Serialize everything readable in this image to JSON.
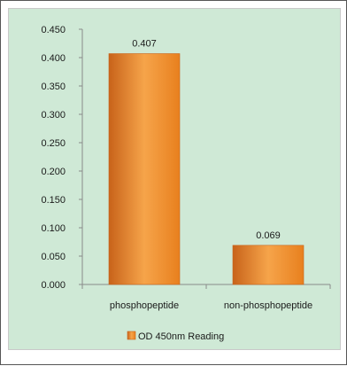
{
  "chart_data": {
    "type": "bar",
    "categories": [
      "phosphopeptide",
      "non-phosphopeptide"
    ],
    "series": [
      {
        "name": "OD 450nm Reading",
        "values": [
          0.407,
          0.069
        ]
      }
    ],
    "data_labels": [
      "0.407",
      "0.069"
    ],
    "y_ticks": [
      "0.000",
      "0.050",
      "0.100",
      "0.150",
      "0.200",
      "0.250",
      "0.300",
      "0.350",
      "0.400",
      "0.450"
    ],
    "ylim": [
      0,
      0.45
    ],
    "grid": false,
    "legend_position": "bottom",
    "colors": {
      "bar_light": "#f6a44a",
      "bar_mid": "#e8801e",
      "bar_dark": "#c8631a",
      "background": "#cfe9d6",
      "frame": "#555555",
      "axis": "#8a8a8a",
      "text": "#1a1a1a"
    }
  }
}
